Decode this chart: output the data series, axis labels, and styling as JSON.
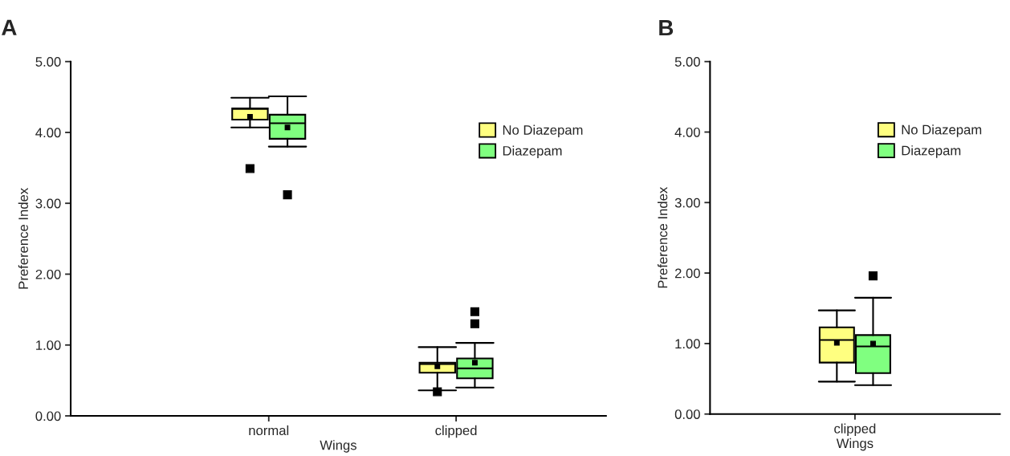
{
  "chart_data": [
    {
      "type": "box",
      "title": "A",
      "xlabel": "Wings",
      "ylabel": "Preference Index",
      "categories": [
        "normal",
        "clipped"
      ],
      "ylim": [
        0,
        5
      ],
      "yticks": [
        {
          "value": 0,
          "label": "0.00"
        },
        {
          "value": 1,
          "label": "1.00"
        },
        {
          "value": 2,
          "label": "2.00"
        },
        {
          "value": 3,
          "label": "3.00"
        },
        {
          "value": 4,
          "label": "4.00"
        },
        {
          "value": 5,
          "label": "5.00"
        }
      ],
      "legend": "top right",
      "grid": false,
      "series": [
        {
          "name": "No Diazepam",
          "color": "#ffff80",
          "boxes": [
            {
              "low": 4.07,
              "q1": 4.18,
              "median": 4.33,
              "q3": 4.34,
              "high": 4.49,
              "mean": 4.22,
              "outliers": [
                3.49
              ]
            },
            {
              "low": 0.36,
              "q1": 0.61,
              "median": 0.73,
              "q3": 0.75,
              "high": 0.97,
              "mean": 0.7,
              "outliers": [
                0.34
              ]
            }
          ]
        },
        {
          "name": "Diazepam",
          "color": "#80ff80",
          "boxes": [
            {
              "low": 3.8,
              "q1": 3.91,
              "median": 4.13,
              "q3": 4.25,
              "high": 4.51,
              "mean": 4.07,
              "outliers": [
                3.12
              ]
            },
            {
              "low": 0.4,
              "q1": 0.53,
              "median": 0.67,
              "q3": 0.81,
              "high": 1.03,
              "mean": 0.75,
              "outliers": [
                1.3,
                1.47
              ]
            }
          ]
        }
      ]
    },
    {
      "type": "box",
      "title": "B",
      "xlabel": "Wings",
      "ylabel": "Preference Index",
      "categories": [
        "clipped"
      ],
      "ylim": [
        0,
        5
      ],
      "yticks": [
        {
          "value": 0,
          "label": "0.00"
        },
        {
          "value": 1,
          "label": "1.00"
        },
        {
          "value": 2,
          "label": "2.00"
        },
        {
          "value": 3,
          "label": "3.00"
        },
        {
          "value": 4,
          "label": "4.00"
        },
        {
          "value": 5,
          "label": "5.00"
        }
      ],
      "legend": "top right",
      "grid": false,
      "series": [
        {
          "name": "No Diazepam",
          "color": "#ffff80",
          "boxes": [
            {
              "low": 0.46,
              "q1": 0.73,
              "median": 1.05,
              "q3": 1.23,
              "high": 1.47,
              "mean": 1.01
            }
          ]
        },
        {
          "name": "Diazepam",
          "color": "#80ff80",
          "boxes": [
            {
              "low": 0.41,
              "q1": 0.58,
              "median": 0.96,
              "q3": 1.12,
              "high": 1.65,
              "mean": 1.0,
              "outliers": [
                1.96
              ]
            }
          ]
        }
      ]
    }
  ]
}
